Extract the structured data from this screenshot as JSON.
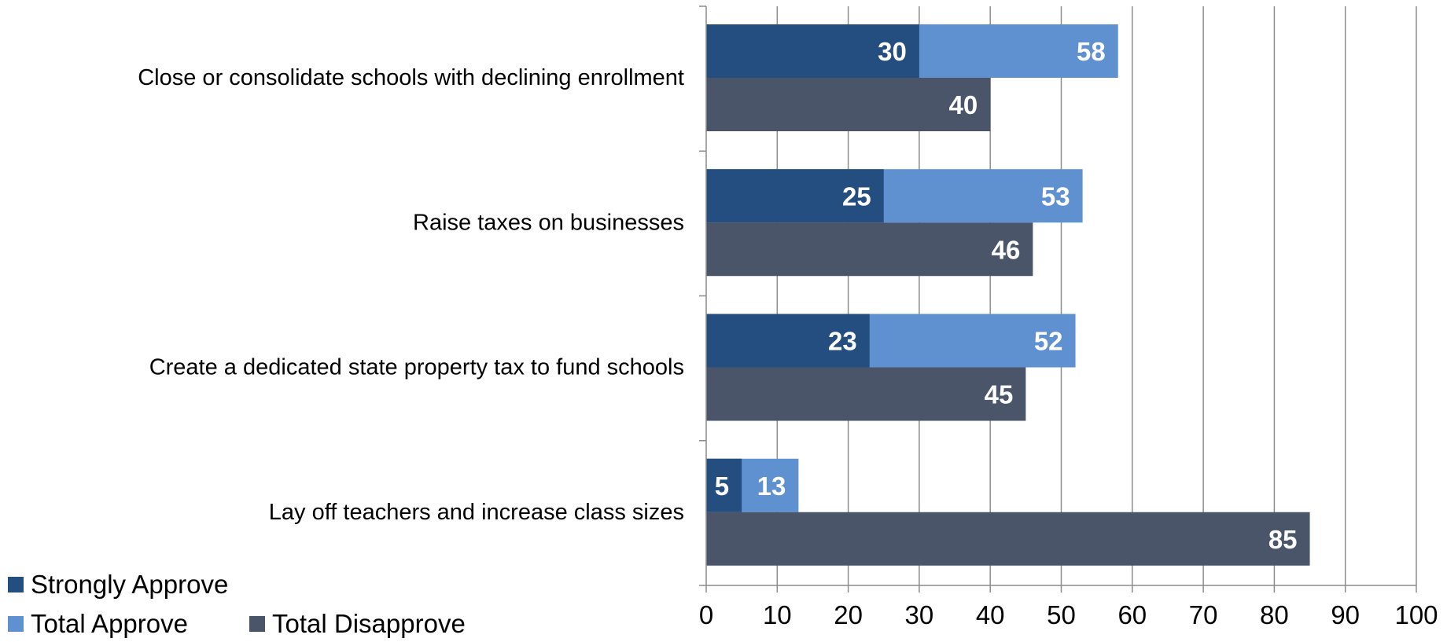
{
  "chart_data": {
    "type": "bar",
    "orientation": "horizontal",
    "categories": [
      "Close or consolidate schools with declining enrollment",
      "Raise taxes on businesses",
      "Create a dedicated state property tax to fund schools",
      "Lay off teachers and increase class sizes"
    ],
    "series": [
      {
        "name": "Strongly Approve",
        "values": [
          30,
          25,
          23,
          5
        ],
        "color": "#244E7F"
      },
      {
        "name": "Total Approve",
        "values": [
          58,
          53,
          52,
          13
        ],
        "color": "#5F91D1"
      },
      {
        "name": "Total Disapprove",
        "values": [
          40,
          46,
          45,
          85
        ],
        "color": "#4A556A"
      }
    ],
    "xlim": [
      0,
      100
    ],
    "xticks": [
      0,
      10,
      20,
      30,
      40,
      50,
      60,
      70,
      80,
      90,
      100
    ],
    "grid": "vertical",
    "legend_position": "bottom-left",
    "title": "",
    "xlabel": "",
    "ylabel": ""
  }
}
